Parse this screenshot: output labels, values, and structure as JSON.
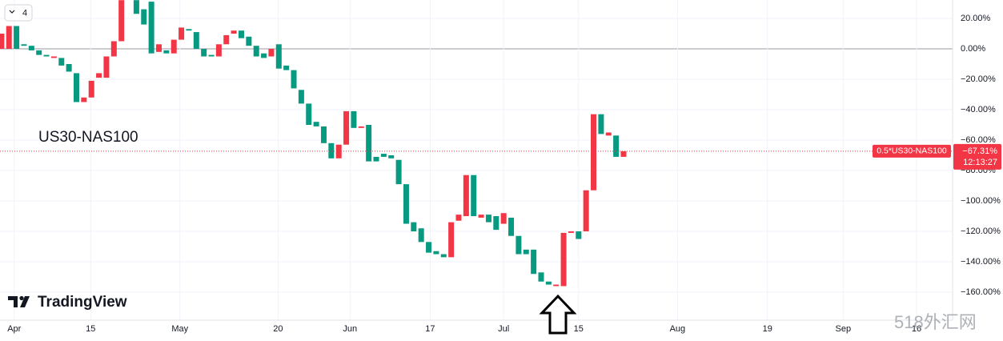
{
  "chart_data": {
    "type": "candlestick",
    "symbol_label": "US30-NAS100",
    "interval_badge": "4",
    "brand": "TradingView",
    "watermark": "518外汇网",
    "up_color": "#f23645",
    "down_color": "#089981",
    "categories": [
      null,
      null,
      null,
      null,
      null,
      null,
      null,
      null,
      null,
      null,
      null,
      null,
      null,
      null,
      null,
      null,
      null,
      null,
      null,
      null,
      null,
      null,
      null,
      null,
      null,
      null,
      null,
      null,
      null,
      null,
      null,
      null,
      null,
      null,
      null,
      null,
      null,
      null,
      null,
      null,
      null,
      null,
      null,
      null,
      null,
      null,
      null,
      null,
      null,
      null,
      null,
      null,
      null,
      null,
      null,
      null,
      null,
      null,
      null,
      null,
      null,
      null,
      null,
      null,
      null,
      null,
      null,
      null,
      null,
      null,
      null,
      null,
      null,
      null,
      null,
      null,
      null,
      null,
      null,
      null,
      null,
      null,
      null,
      null
    ],
    "open": [
      0,
      0,
      15,
      3,
      2,
      -1,
      -4,
      -6,
      -6,
      -10,
      -16,
      -35,
      -32,
      -19,
      -19,
      -5,
      5,
      null,
      32,
      26,
      31,
      -2,
      -1,
      -3,
      6,
      13,
      11,
      0,
      -4,
      -5,
      3,
      10,
      12,
      8,
      2,
      -3,
      -5,
      3,
      -11,
      -14,
      -27,
      -36,
      -48,
      -51,
      -62,
      -72,
      -63,
      -41,
      -52,
      -50,
      -71,
      -69,
      -70,
      -73,
      -89,
      -114,
      -118,
      -127,
      -133,
      -135,
      -137,
      -113,
      -110,
      -83,
      -111,
      -109,
      -110,
      -115,
      -111,
      -123,
      -132,
      -132,
      -147,
      -153,
      -156,
      -156,
      -121,
      -120,
      -120,
      -93,
      -43,
      -57,
      -57,
      -71
    ],
    "close": [
      10,
      15,
      0,
      2,
      -1,
      -4,
      -5,
      -5,
      -11,
      -15,
      -35,
      -32,
      -21,
      -16,
      -5,
      5,
      32,
      null,
      23,
      16,
      -3,
      3,
      -3,
      6,
      14,
      12,
      0,
      -5,
      -5,
      3,
      9,
      12,
      7,
      2,
      -5,
      -6,
      0,
      -13,
      -14,
      -26,
      -36,
      -50,
      -51,
      -62,
      -72,
      -63,
      -41,
      -52,
      -51,
      -74,
      -74,
      -71,
      -72,
      -89,
      -115,
      -120,
      -127,
      -134,
      -135,
      -137,
      -114,
      -109,
      -83,
      -110,
      -109,
      -114,
      -119,
      -108,
      -123,
      -135,
      -135,
      -148,
      -153,
      -155,
      -155,
      -121,
      -120,
      -125,
      -93,
      -43,
      -56,
      -55,
      -71,
      -67.31
    ],
    "xlim": [
      -0.2,
      126.9
    ],
    "xticks": [
      {
        "value": 1.7,
        "label": "Apr"
      },
      {
        "value": 11.9,
        "label": "15"
      },
      {
        "value": 23.8,
        "label": "May"
      },
      {
        "value": 36.9,
        "label": "20"
      },
      {
        "value": 46.5,
        "label": "Jun"
      },
      {
        "value": 57.2,
        "label": "17"
      },
      {
        "value": 67.0,
        "label": "Jul"
      },
      {
        "value": 77.0,
        "label": "15"
      },
      {
        "value": 90.2,
        "label": "Aug"
      },
      {
        "value": 102.2,
        "label": "19"
      },
      {
        "value": 112.3,
        "label": "Sep"
      },
      {
        "value": 122.1,
        "label": "16"
      }
    ],
    "ylim": [
      -178.4,
      32.1
    ],
    "yticks": [
      {
        "value": 20,
        "label": "20.00%"
      },
      {
        "value": 0,
        "label": "0.00%"
      },
      {
        "value": -20,
        "label": "−20.00%"
      },
      {
        "value": -40,
        "label": "−40.00%"
      },
      {
        "value": -60,
        "label": "−60.00%"
      },
      {
        "value": -80,
        "label": "−80.00%"
      },
      {
        "value": -100,
        "label": "−100.00%"
      },
      {
        "value": -120,
        "label": "−120.00%"
      },
      {
        "value": -140,
        "label": "−140.00%"
      },
      {
        "value": -160,
        "label": "−160.00%"
      }
    ],
    "grid": true,
    "price_tag": {
      "name": "0.5*US30-NAS100",
      "value": -67.31,
      "value_label": "−67.31%",
      "countdown": "12:13:27"
    }
  }
}
